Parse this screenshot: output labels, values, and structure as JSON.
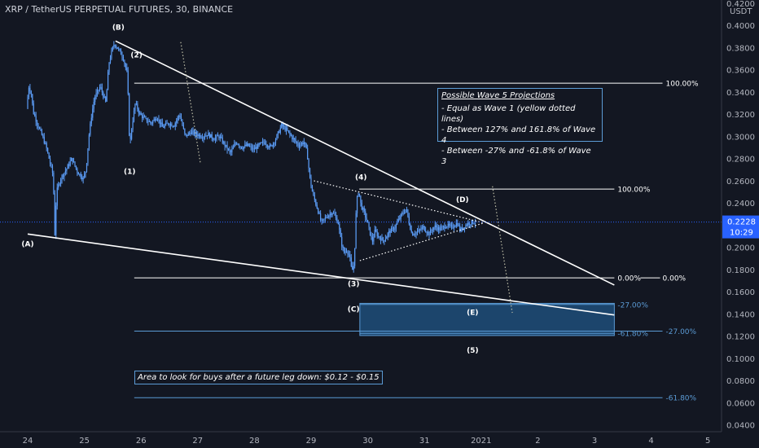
{
  "header": {
    "title": "XRP / TetherUS PERPETUAL FUTURES, 30, BINANCE"
  },
  "chart_data": {
    "type": "candlestick",
    "symbol": "XRP / TetherUS PERPETUAL FUTURES",
    "interval": "30",
    "exchange": "BINANCE",
    "currency_label": "USDT",
    "price_axis": {
      "range": [
        0.04,
        0.42
      ],
      "tick_labels": [
        "0.4200",
        "0.4000",
        "0.3800",
        "0.3600",
        "0.3400",
        "0.3200",
        "0.3000",
        "0.2800",
        "0.2600",
        "0.2400",
        "0.2200",
        "0.2000",
        "0.1800",
        "0.1600",
        "0.1400",
        "0.1200",
        "0.1000",
        "0.0800",
        "0.0600",
        "0.0400"
      ]
    },
    "time_axis": {
      "tick_labels": [
        "24",
        "25",
        "26",
        "27",
        "28",
        "29",
        "30",
        "31",
        "2021",
        "2",
        "3",
        "4",
        "5"
      ]
    },
    "last_price": {
      "value": "0.2228",
      "countdown": "10:29"
    },
    "price_path": [
      [
        24.0,
        0.325
      ],
      [
        24.04,
        0.345
      ],
      [
        24.08,
        0.34
      ],
      [
        24.12,
        0.322
      ],
      [
        24.2,
        0.31
      ],
      [
        24.28,
        0.3
      ],
      [
        24.35,
        0.29
      ],
      [
        24.42,
        0.275
      ],
      [
        24.47,
        0.265
      ],
      [
        24.5,
        0.212
      ],
      [
        24.53,
        0.25
      ],
      [
        24.6,
        0.262
      ],
      [
        24.7,
        0.27
      ],
      [
        24.8,
        0.28
      ],
      [
        24.9,
        0.268
      ],
      [
        25.0,
        0.262
      ],
      [
        25.05,
        0.27
      ],
      [
        25.1,
        0.3
      ],
      [
        25.15,
        0.32
      ],
      [
        25.2,
        0.335
      ],
      [
        25.3,
        0.345
      ],
      [
        25.4,
        0.33
      ],
      [
        25.45,
        0.365
      ],
      [
        25.5,
        0.376
      ],
      [
        25.55,
        0.384
      ],
      [
        25.6,
        0.38
      ],
      [
        25.7,
        0.372
      ],
      [
        25.78,
        0.356
      ],
      [
        25.82,
        0.29
      ],
      [
        25.86,
        0.31
      ],
      [
        25.92,
        0.33
      ],
      [
        26.0,
        0.32
      ],
      [
        26.1,
        0.315
      ],
      [
        26.2,
        0.312
      ],
      [
        26.3,
        0.318
      ],
      [
        26.4,
        0.308
      ],
      [
        26.5,
        0.312
      ],
      [
        26.6,
        0.31
      ],
      [
        26.7,
        0.32
      ],
      [
        26.8,
        0.3
      ],
      [
        26.9,
        0.304
      ],
      [
        27.0,
        0.302
      ],
      [
        27.1,
        0.3
      ],
      [
        27.2,
        0.302
      ],
      [
        27.3,
        0.298
      ],
      [
        27.4,
        0.3
      ],
      [
        27.5,
        0.292
      ],
      [
        27.6,
        0.285
      ],
      [
        27.7,
        0.295
      ],
      [
        27.8,
        0.29
      ],
      [
        27.9,
        0.292
      ],
      [
        28.0,
        0.288
      ],
      [
        28.1,
        0.292
      ],
      [
        28.2,
        0.295
      ],
      [
        28.3,
        0.29
      ],
      [
        28.4,
        0.298
      ],
      [
        28.5,
        0.31
      ],
      [
        28.6,
        0.305
      ],
      [
        28.7,
        0.298
      ],
      [
        28.8,
        0.292
      ],
      [
        28.9,
        0.295
      ],
      [
        28.95,
        0.285
      ],
      [
        29.0,
        0.262
      ],
      [
        29.05,
        0.248
      ],
      [
        29.1,
        0.24
      ],
      [
        29.15,
        0.232
      ],
      [
        29.2,
        0.222
      ],
      [
        29.3,
        0.228
      ],
      [
        29.4,
        0.232
      ],
      [
        29.5,
        0.222
      ],
      [
        29.55,
        0.205
      ],
      [
        29.6,
        0.195
      ],
      [
        29.65,
        0.198
      ],
      [
        29.7,
        0.192
      ],
      [
        29.74,
        0.178
      ],
      [
        29.78,
        0.185
      ],
      [
        29.82,
        0.24
      ],
      [
        29.86,
        0.252
      ],
      [
        29.9,
        0.238
      ],
      [
        29.95,
        0.232
      ],
      [
        30.0,
        0.225
      ],
      [
        30.05,
        0.215
      ],
      [
        30.1,
        0.205
      ],
      [
        30.15,
        0.215
      ],
      [
        30.2,
        0.21
      ],
      [
        30.3,
        0.206
      ],
      [
        30.4,
        0.214
      ],
      [
        30.5,
        0.218
      ],
      [
        30.6,
        0.228
      ],
      [
        30.7,
        0.235
      ],
      [
        30.75,
        0.222
      ],
      [
        30.8,
        0.212
      ],
      [
        30.9,
        0.214
      ],
      [
        31.0,
        0.218
      ],
      [
        31.1,
        0.212
      ],
      [
        31.2,
        0.219
      ],
      [
        31.3,
        0.216
      ],
      [
        31.4,
        0.22
      ],
      [
        31.5,
        0.218
      ],
      [
        31.6,
        0.222
      ],
      [
        31.65,
        0.215
      ],
      [
        31.7,
        0.218
      ],
      [
        31.8,
        0.222
      ],
      [
        31.9,
        0.2228
      ]
    ],
    "trendlines": [
      {
        "name": "upper-wedge-line",
        "from": [
          25.55,
          0.386
        ],
        "to": [
          34.35,
          0.166
        ]
      },
      {
        "name": "lower-wedge-line",
        "from": [
          24.0,
          0.212
        ],
        "to": [
          34.35,
          0.139
        ]
      }
    ],
    "triangle_lines": [
      {
        "name": "triangle-upper",
        "from": [
          29.05,
          0.26
        ],
        "to": [
          32.05,
          0.222
        ]
      },
      {
        "name": "triangle-lower",
        "from": [
          29.86,
          0.188
        ],
        "to": [
          32.05,
          0.222
        ]
      }
    ],
    "yellow_dotted_lines": [
      {
        "name": "wave1-projection-a",
        "from": [
          26.7,
          0.385
        ],
        "to": [
          27.05,
          0.275
        ]
      },
      {
        "name": "wave1-projection-b",
        "from": [
          32.2,
          0.255
        ],
        "to": [
          32.55,
          0.141
        ]
      }
    ],
    "fib_levels": [
      {
        "name": "fib-100-upper",
        "price": 0.348,
        "from": 25.88,
        "to": 35.2,
        "label": "100.00%"
      },
      {
        "name": "fib-100-lower",
        "price": 0.2525,
        "from": 29.85,
        "to": 34.35,
        "label": "100.00%"
      },
      {
        "name": "fib-0-pair",
        "price": 0.1725,
        "from": 25.88,
        "to": 34.35,
        "label": "0.00%",
        "label2": "0.00%"
      },
      {
        "name": "fib-neg27-upper",
        "price": 0.1485,
        "from": 29.86,
        "to": 34.35,
        "label": "-27.00%"
      },
      {
        "name": "fib-neg618-upper",
        "price": 0.1225,
        "from": 29.86,
        "to": 34.35,
        "label": "-61.80%"
      },
      {
        "name": "fib-neg27-lower",
        "price": 0.1245,
        "from": 25.88,
        "to": 35.2,
        "label": "-27.00%"
      },
      {
        "name": "fib-neg618-lower",
        "price": 0.0645,
        "from": 25.88,
        "to": 35.2,
        "label": "-61.80%"
      }
    ],
    "buy_zone": {
      "from_x": 29.86,
      "to_x": 34.35,
      "from_price": 0.1205,
      "to_price": 0.1495
    },
    "wave_labels": [
      {
        "text": "(A)",
        "x": 24.0,
        "price": 0.201
      },
      {
        "text": "(B)",
        "x": 25.6,
        "price": 0.396
      },
      {
        "text": "(1)",
        "x": 25.8,
        "price": 0.266
      },
      {
        "text": "(2)",
        "x": 25.92,
        "price": 0.371
      },
      {
        "text": "(3)",
        "x": 29.75,
        "price": 0.165
      },
      {
        "text": "(4)",
        "x": 29.88,
        "price": 0.261
      },
      {
        "text": "(C)",
        "x": 29.75,
        "price": 0.142
      },
      {
        "text": "(D)",
        "x": 31.67,
        "price": 0.241
      },
      {
        "text": "(E)",
        "x": 31.85,
        "price": 0.139
      },
      {
        "text": "(5)",
        "x": 31.85,
        "price": 0.105
      }
    ]
  },
  "annotations": {
    "projections_box": {
      "title": "Possible Wave 5 Projections",
      "lines": [
        "- Equal as Wave 1 (yellow dotted lines)",
        "- Between 127% and 161.8% of Wave 4",
        "- Between -27% and -61.8% of Wave 3"
      ]
    },
    "buy_area": "Area to look for buys after a future leg down: $0.12 - $0.15"
  },
  "colors": {
    "background": "#131722",
    "candle": "#5b9cf6",
    "trendline": "#ffffff",
    "fib_line": "#ffffff",
    "fib_line_blue": "#5b9bd5",
    "zone_fill": "#1f4e79",
    "axis_text": "#b2b5be",
    "price_badge": "#2962ff",
    "dotted": "#bfbfa8"
  }
}
